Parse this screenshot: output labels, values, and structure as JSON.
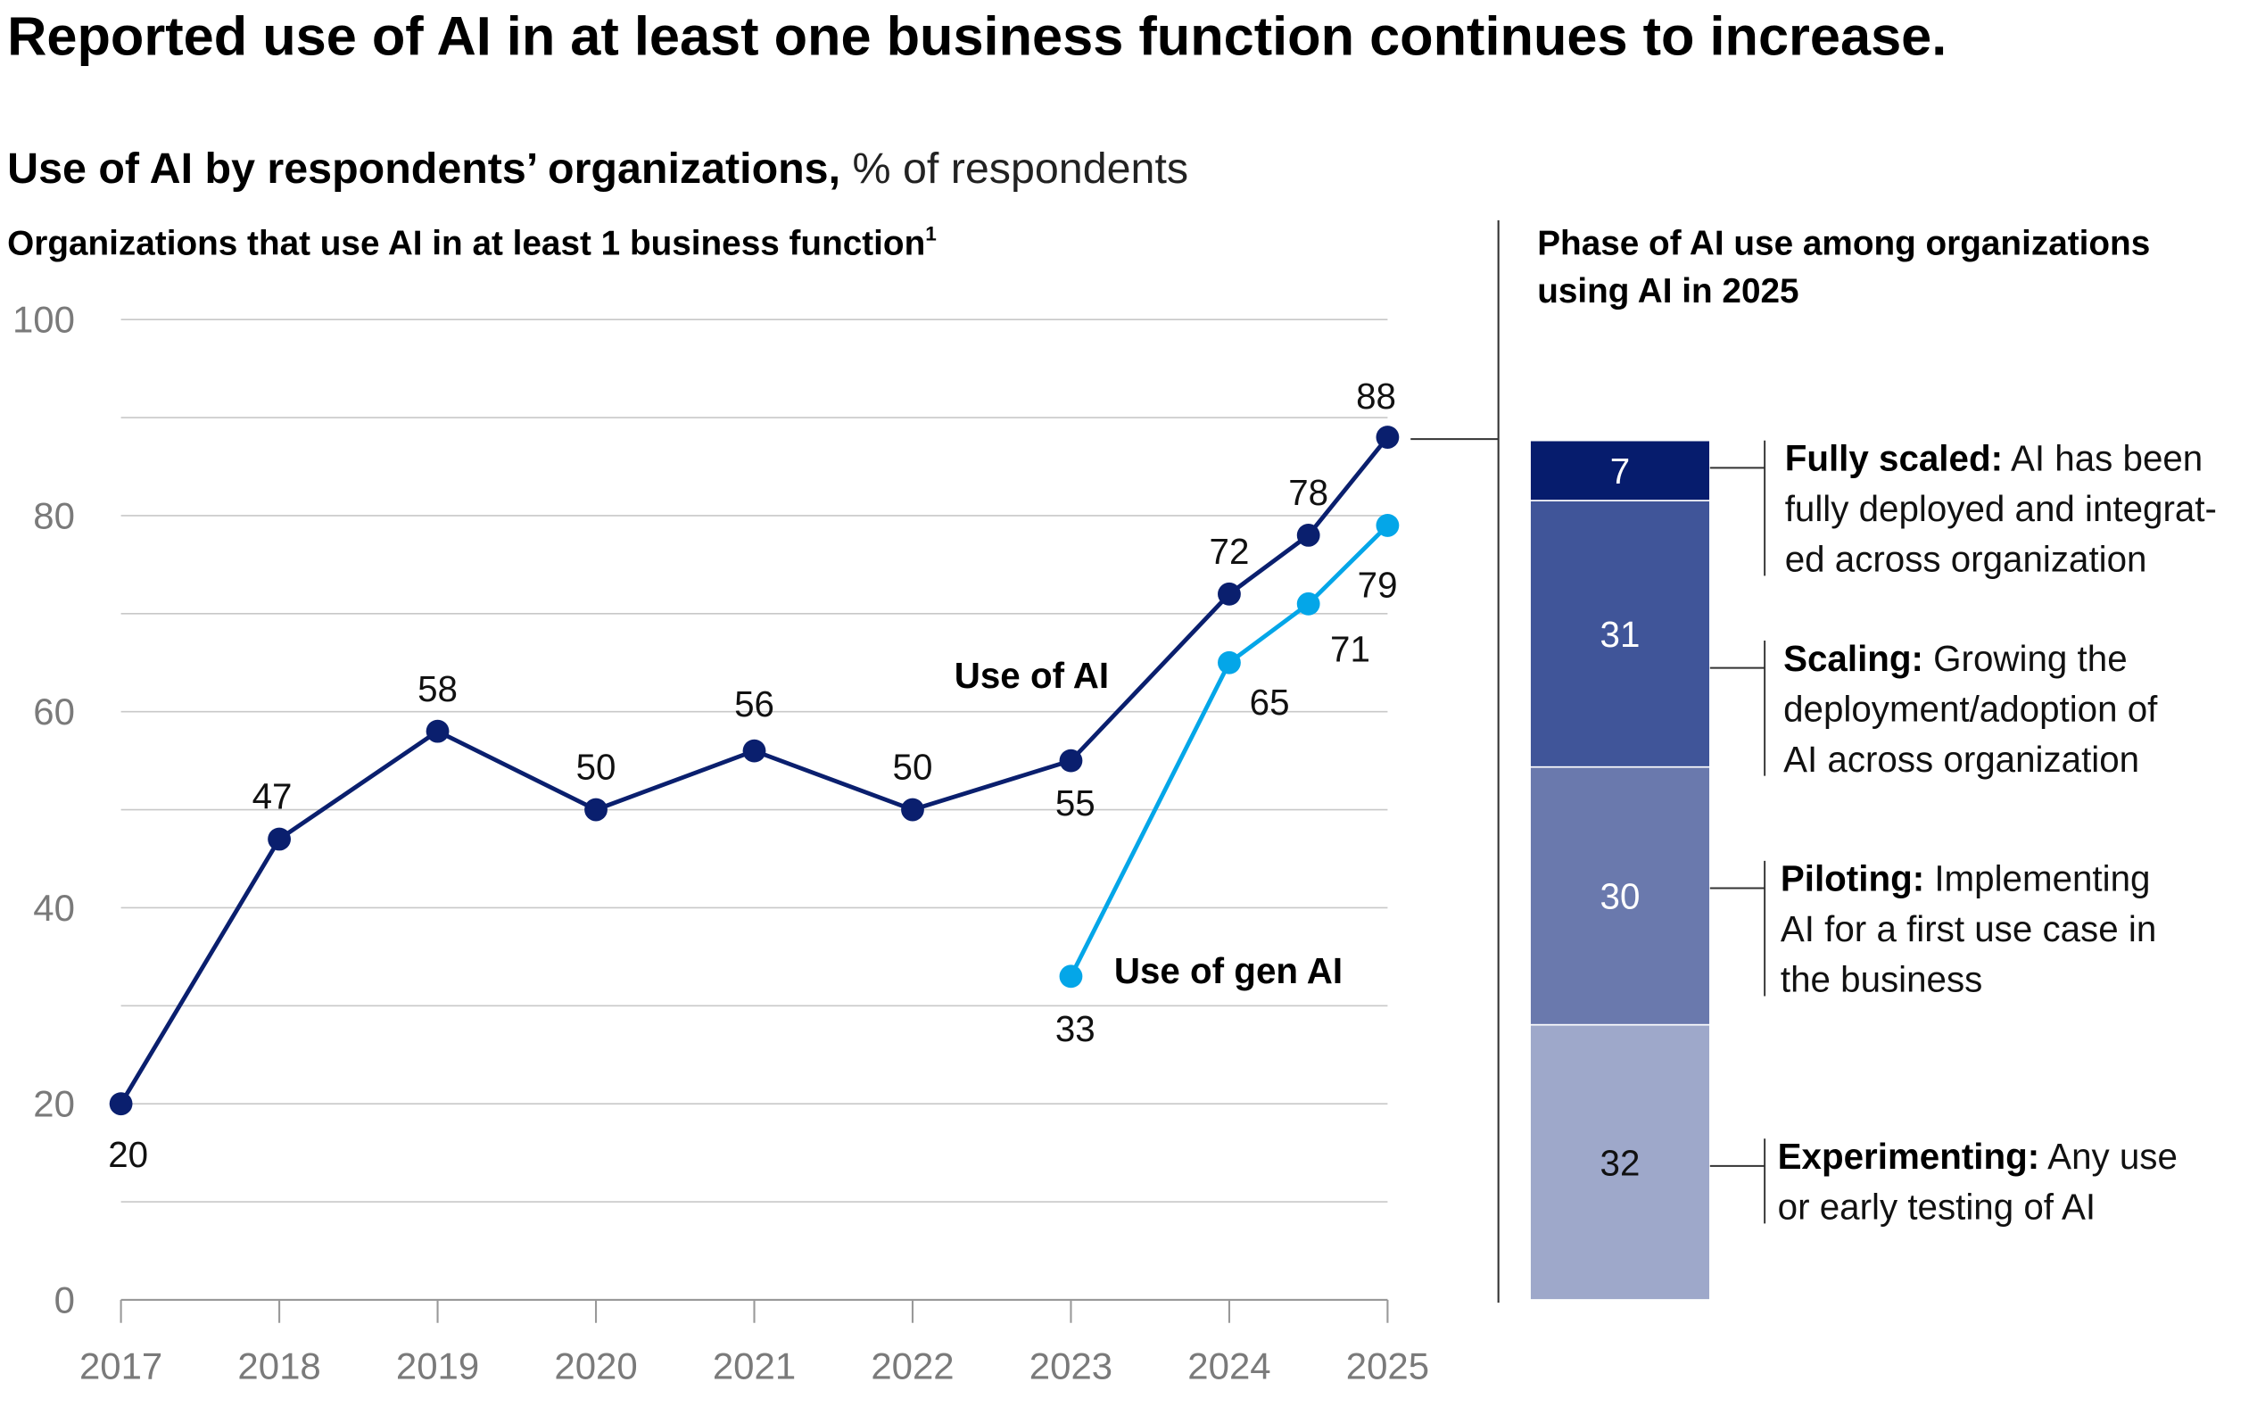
{
  "title": "Reported use of AI in at least one business function continues to increase.",
  "subtitle_bold": "Use of AI by respondents’ organizations,",
  "subtitle_normal": " % of respondents",
  "chart_data": [
    {
      "type": "line",
      "title": "Organizations that use AI in at least 1 business function",
      "footnote_marker": "1",
      "ylim": [
        0,
        100
      ],
      "yticks": [
        "0",
        "20",
        "40",
        "60",
        "80",
        "100"
      ],
      "xticks": [
        "2017",
        "2018",
        "2019",
        "2020",
        "2021",
        "2022",
        "2023",
        "2024",
        "2025"
      ],
      "grid": true,
      "series": [
        {
          "name": "Use of AI",
          "color": "#0a1f6e",
          "x": [
            2017,
            2018,
            2019,
            2020,
            2021,
            2022,
            2023,
            2024,
            2024.5,
            2025
          ],
          "values": [
            20,
            47,
            58,
            50,
            56,
            50,
            55,
            72,
            78,
            88
          ],
          "labels": [
            "20",
            "47",
            "58",
            "50",
            "56",
            "50",
            "55",
            "72",
            "78",
            "88"
          ]
        },
        {
          "name": "Use of gen AI",
          "color": "#04a6e8",
          "x": [
            2023,
            2024,
            2024.5,
            2025
          ],
          "values": [
            33,
            65,
            71,
            79
          ],
          "labels": [
            "33",
            "65",
            "71",
            "79"
          ]
        }
      ]
    },
    {
      "type": "bar",
      "stacked": true,
      "title_line1": "Phase of AI use among organizations",
      "title_line2": "using AI in 2025",
      "segments": [
        {
          "value": 7,
          "label": "7",
          "color": "#061c6d",
          "text_color": "#ffffff",
          "name": "Fully scaled:",
          "desc": [
            " AI has been",
            "fully deployed and integrat-",
            "ed across organization"
          ]
        },
        {
          "value": 31,
          "label": "31",
          "color": "#405599",
          "text_color": "#ffffff",
          "name": "Scaling:",
          "desc": [
            " Growing the",
            "deployment/adoption of",
            "AI across organization"
          ]
        },
        {
          "value": 30,
          "label": "30",
          "color": "#6a79ad",
          "text_color": "#ffffff",
          "name": "Piloting:",
          "desc": [
            " Implementing",
            "AI for a first use case in",
            "the business"
          ]
        },
        {
          "value": 32,
          "label": "32",
          "color": "#9ea8ca",
          "text_color": "#111111",
          "name": "Experimenting:",
          "desc": [
            " Any use",
            "or early testing of AI"
          ]
        }
      ]
    }
  ]
}
